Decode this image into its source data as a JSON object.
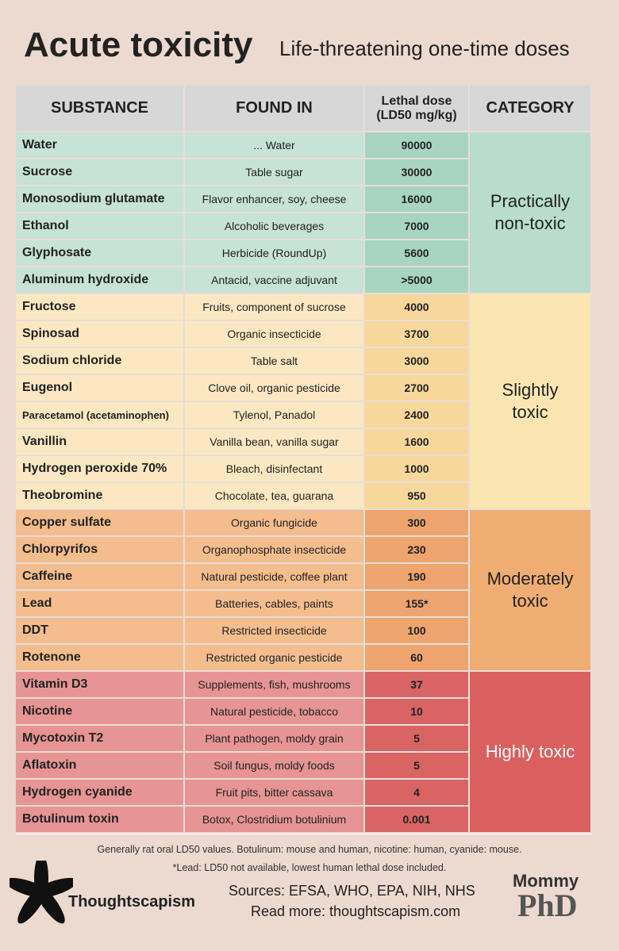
{
  "header": {
    "title": "Acute toxicity",
    "subtitle": "Life-threatening one-time doses"
  },
  "table": {
    "columns": [
      "SUBSTANCE",
      "FOUND IN",
      "Lethal dose (LD50 mg/kg)",
      "CATEGORY"
    ],
    "groups": [
      {
        "category": "Practically non-toxic",
        "rows": [
          [
            "Water",
            "... Water",
            "90000"
          ],
          [
            "Sucrose",
            "Table sugar",
            "30000"
          ],
          [
            "Monosodium glutamate",
            "Flavor enhancer, soy, cheese",
            "16000"
          ],
          [
            "Ethanol",
            "Alcoholic beverages",
            "7000"
          ],
          [
            "Glyphosate",
            "Herbicide (RoundUp)",
            "5600"
          ],
          [
            "Aluminum hydroxide",
            "Antacid, vaccine adjuvant",
            ">5000"
          ]
        ]
      },
      {
        "category": "Slightly toxic",
        "rows": [
          [
            "Fructose",
            "Fruits, component of sucrose",
            "4000"
          ],
          [
            "Spinosad",
            "Organic insecticide",
            "3700"
          ],
          [
            "Sodium chloride",
            "Table salt",
            "3000"
          ],
          [
            "Eugenol",
            "Clove oil, organic pesticide",
            "2700"
          ],
          [
            "Paracetamol (acetaminophen)",
            "Tylenol, Panadol",
            "2400"
          ],
          [
            "Vanillin",
            "Vanilla bean, vanilla sugar",
            "1600"
          ],
          [
            "Hydrogen peroxide 70%",
            "Bleach, disinfectant",
            "1000"
          ],
          [
            "Theobromine",
            "Chocolate, tea, guarana",
            "950"
          ]
        ]
      },
      {
        "category": "Moderately toxic",
        "rows": [
          [
            "Copper sulfate",
            "Organic fungicide",
            "300"
          ],
          [
            "Chlorpyrifos",
            "Organophosphate insecticide",
            "230"
          ],
          [
            "Caffeine",
            "Natural pesticide, coffee plant",
            "190"
          ],
          [
            "Lead",
            "Batteries, cables, paints",
            "155*"
          ],
          [
            "DDT",
            "Restricted insecticide",
            "100"
          ],
          [
            "Rotenone",
            "Restricted organic pesticide",
            "60"
          ]
        ]
      },
      {
        "category": "Highly toxic",
        "rows": [
          [
            "Vitamin D3",
            "Supplements, fish, mushrooms",
            "37"
          ],
          [
            "Nicotine",
            "Natural pesticide, tobacco",
            "10"
          ],
          [
            "Mycotoxin T2",
            "Plant pathogen, moldy grain",
            "5"
          ],
          [
            "Aflatoxin",
            "Soil fungus, moldy foods",
            "5"
          ],
          [
            "Hydrogen cyanide",
            "Fruit pits, bitter cassava",
            "4"
          ],
          [
            "Botulinum toxin",
            "Botox, Clostridium botulinium",
            "0.001"
          ]
        ]
      }
    ]
  },
  "footer": {
    "note": "Generally rat oral LD50 values. Botulinum: mouse and human, nicotine: human, cyanide: mouse.",
    "lead_note": "*Lead: LD50 not available, lowest human lethal dose included.",
    "brand": "Thoughtscapism",
    "sources": "Sources: EFSA, WHO, EPA, NIH, NHS",
    "read_more": "Read more: thoughtscapism.com",
    "logo_top": "Mommy",
    "logo_bottom": "PhD"
  }
}
